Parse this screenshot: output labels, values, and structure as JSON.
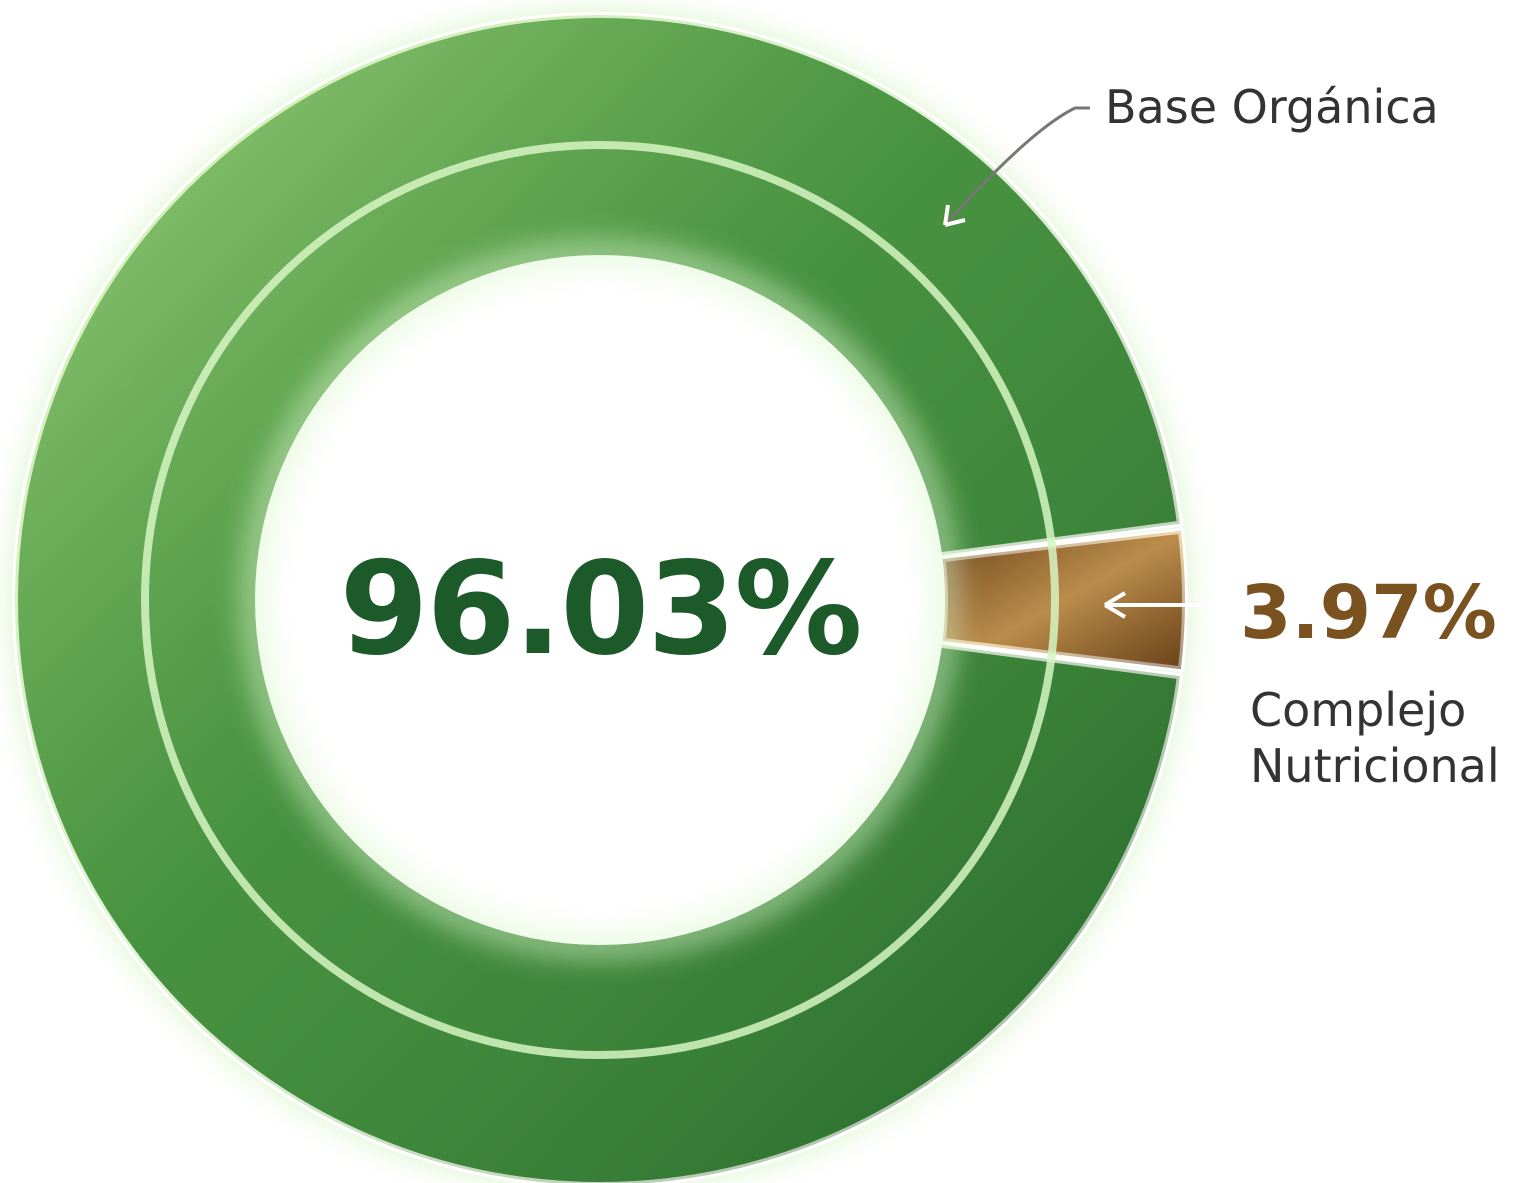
{
  "chart_data": {
    "type": "pie",
    "donut": true,
    "categories": [
      "Base Orgánica",
      "Complejo Nutricional"
    ],
    "values": [
      96.03,
      3.97
    ],
    "value_labels": [
      "96.03%",
      "3.97%"
    ],
    "colors": [
      "#2f7d34",
      "#8a5a26"
    ]
  }
}
